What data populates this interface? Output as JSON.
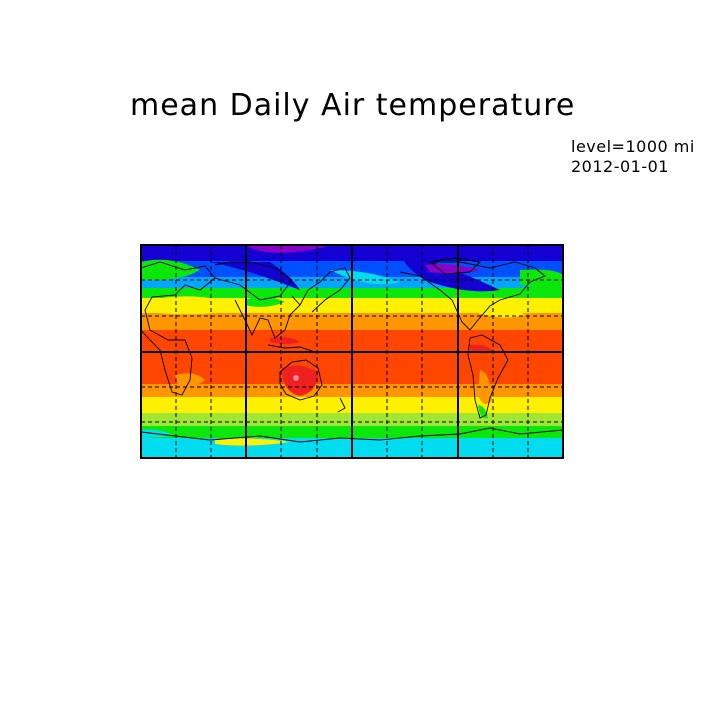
{
  "title": "mean Daily Air temperature",
  "info": {
    "level": "level=1000 mi",
    "date": "2012-01-01 "
  },
  "map": {
    "projection": "cylindrical equidistant",
    "lon_range": [
      0,
      360
    ],
    "lat_range": [
      -90,
      90
    ],
    "colors": {
      "purple": "#8a00c8",
      "navy": "#1400d2",
      "blue": "#0050ff",
      "sky": "#00a6ff",
      "cyan": "#00dcf0",
      "green": "#0be60b",
      "yellowgreen": "#a0e632",
      "yellow": "#fff000",
      "orange": "#ff9600",
      "redorange": "#ff4600",
      "red": "#ee2020",
      "pink": "#ff82a0"
    }
  }
}
